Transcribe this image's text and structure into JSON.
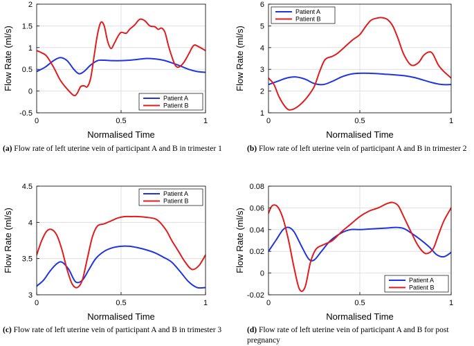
{
  "chart_data": [
    {
      "type": "line",
      "caption_tag": "(a)",
      "caption_text": "Flow rate of left uterine vein of participant A and B in trimester 1",
      "xlabel": "Normalised Time",
      "ylabel": "Flow Rate (ml/s)",
      "xlim": [
        0,
        1
      ],
      "ylim": [
        -0.5,
        2
      ],
      "xticks": [
        0,
        0.5,
        1
      ],
      "xtick_labels": [
        "0",
        "0.5",
        "1"
      ],
      "yticks": [
        -0.5,
        0,
        0.5,
        1,
        1.5,
        2
      ],
      "ytick_labels": [
        "-0.5",
        "0",
        "0.5",
        "1",
        "1.5",
        "2"
      ],
      "grid": true,
      "legend_position": "bottom-right",
      "series": [
        {
          "name": "Patient A",
          "color": "#1f33e6",
          "x": [
            0,
            0.05,
            0.1,
            0.14,
            0.18,
            0.22,
            0.25,
            0.28,
            0.32,
            0.36,
            0.4,
            0.45,
            0.5,
            0.55,
            0.6,
            0.65,
            0.7,
            0.75,
            0.8,
            0.85,
            0.9,
            0.95,
            1
          ],
          "y": [
            0.45,
            0.55,
            0.7,
            0.77,
            0.7,
            0.5,
            0.4,
            0.45,
            0.6,
            0.7,
            0.71,
            0.7,
            0.7,
            0.71,
            0.73,
            0.75,
            0.74,
            0.71,
            0.65,
            0.58,
            0.5,
            0.45,
            0.43
          ]
        },
        {
          "name": "Patient B",
          "color": "#e31a1c",
          "x": [
            0,
            0.03,
            0.06,
            0.1,
            0.14,
            0.18,
            0.22,
            0.24,
            0.26,
            0.28,
            0.3,
            0.32,
            0.34,
            0.36,
            0.38,
            0.4,
            0.42,
            0.44,
            0.46,
            0.48,
            0.5,
            0.53,
            0.55,
            0.58,
            0.61,
            0.64,
            0.67,
            0.7,
            0.72,
            0.74,
            0.76,
            0.78,
            0.8,
            0.82,
            0.84,
            0.87,
            0.9,
            0.93,
            0.96,
            1
          ],
          "y": [
            0.93,
            0.88,
            0.8,
            0.55,
            0.25,
            0.05,
            -0.1,
            -0.05,
            0.1,
            0.12,
            0.1,
            0.3,
            0.8,
            1.3,
            1.58,
            1.5,
            1.15,
            0.98,
            1.1,
            1.25,
            1.35,
            1.33,
            1.42,
            1.52,
            1.65,
            1.62,
            1.5,
            1.48,
            1.42,
            1.45,
            1.35,
            1.05,
            0.8,
            0.6,
            0.55,
            0.65,
            0.85,
            1.05,
            1.02,
            0.93
          ]
        }
      ]
    },
    {
      "type": "line",
      "caption_tag": "(b)",
      "caption_text": "Flow rate of left uterine vein of participant A and B in trimester 2",
      "xlabel": "Normalised Time",
      "ylabel": "Flow Rate (ml/s)",
      "xlim": [
        0,
        1
      ],
      "ylim": [
        1,
        6
      ],
      "xticks": [
        0,
        0.5,
        1
      ],
      "xtick_labels": [
        "0",
        "0.5",
        "1"
      ],
      "yticks": [
        1,
        2,
        3,
        4,
        5,
        6
      ],
      "ytick_labels": [
        "1",
        "2",
        "3",
        "4",
        "5",
        "6"
      ],
      "grid": true,
      "legend_position": "top-left",
      "series": [
        {
          "name": "Patient A",
          "color": "#1f33e6",
          "x": [
            0,
            0.05,
            0.1,
            0.15,
            0.2,
            0.25,
            0.3,
            0.35,
            0.4,
            0.45,
            0.5,
            0.55,
            0.6,
            0.65,
            0.7,
            0.75,
            0.8,
            0.85,
            0.9,
            0.95,
            1
          ],
          "y": [
            2.3,
            2.45,
            2.6,
            2.65,
            2.55,
            2.35,
            2.3,
            2.45,
            2.65,
            2.78,
            2.82,
            2.82,
            2.8,
            2.77,
            2.74,
            2.7,
            2.62,
            2.5,
            2.38,
            2.3,
            2.3
          ]
        },
        {
          "name": "Patient B",
          "color": "#e31a1c",
          "x": [
            0,
            0.03,
            0.06,
            0.1,
            0.13,
            0.17,
            0.21,
            0.25,
            0.28,
            0.31,
            0.35,
            0.38,
            0.42,
            0.46,
            0.5,
            0.53,
            0.56,
            0.59,
            0.62,
            0.65,
            0.68,
            0.71,
            0.74,
            0.78,
            0.82,
            0.85,
            0.88,
            0.9,
            0.93,
            0.96,
            1
          ],
          "y": [
            2.6,
            2.3,
            1.7,
            1.2,
            1.15,
            1.35,
            1.7,
            2.2,
            2.9,
            3.45,
            3.6,
            3.75,
            4.05,
            4.35,
            4.6,
            4.95,
            5.25,
            5.35,
            5.38,
            5.3,
            5.0,
            4.4,
            3.7,
            3.2,
            3.3,
            3.65,
            3.8,
            3.7,
            3.2,
            2.9,
            2.6
          ]
        }
      ]
    },
    {
      "type": "line",
      "caption_tag": "(c)",
      "caption_text": "Flow rate of left uterine vein of participant A and B in trimester 3",
      "xlabel": "Normalised Time",
      "ylabel": "Flow Rate (ml/s)",
      "xlim": [
        0,
        1
      ],
      "ylim": [
        3,
        4.5
      ],
      "xticks": [
        0,
        0.5,
        1
      ],
      "xtick_labels": [
        "0",
        "0.5",
        "1"
      ],
      "yticks": [
        3,
        3.5,
        4,
        4.5
      ],
      "ytick_labels": [
        "3",
        "3.5",
        "4",
        "4.5"
      ],
      "grid": true,
      "legend_position": "top-right",
      "series": [
        {
          "name": "Patient A",
          "color": "#1f33e6",
          "x": [
            0,
            0.04,
            0.08,
            0.12,
            0.15,
            0.19,
            0.23,
            0.27,
            0.31,
            0.35,
            0.4,
            0.45,
            0.5,
            0.55,
            0.6,
            0.65,
            0.7,
            0.75,
            0.8,
            0.85,
            0.9,
            0.95,
            1
          ],
          "y": [
            3.12,
            3.2,
            3.33,
            3.43,
            3.45,
            3.35,
            3.18,
            3.2,
            3.35,
            3.5,
            3.6,
            3.65,
            3.67,
            3.67,
            3.65,
            3.62,
            3.58,
            3.52,
            3.45,
            3.32,
            3.18,
            3.1,
            3.1
          ]
        },
        {
          "name": "Patient B",
          "color": "#e31a1c",
          "x": [
            0,
            0.03,
            0.06,
            0.09,
            0.12,
            0.15,
            0.18,
            0.21,
            0.24,
            0.27,
            0.3,
            0.33,
            0.36,
            0.4,
            0.44,
            0.48,
            0.52,
            0.56,
            0.6,
            0.65,
            0.7,
            0.73,
            0.77,
            0.8,
            0.84,
            0.88,
            0.92,
            0.96,
            1
          ],
          "y": [
            3.55,
            3.75,
            3.88,
            3.9,
            3.82,
            3.62,
            3.35,
            3.15,
            3.1,
            3.2,
            3.5,
            3.8,
            3.95,
            3.98,
            4.02,
            4.06,
            4.08,
            4.08,
            4.08,
            4.07,
            4.05,
            4.0,
            3.88,
            3.75,
            3.6,
            3.45,
            3.35,
            3.4,
            3.55
          ]
        }
      ]
    },
    {
      "type": "line",
      "caption_tag": "(d)",
      "caption_text": "Flow rate of left uterine vein of participant A and B for post pregnancy",
      "xlabel": "Normalised Time",
      "ylabel": "Flow Rate (ml/s)",
      "xlim": [
        0,
        1
      ],
      "ylim": [
        -0.02,
        0.08
      ],
      "xticks": [
        0,
        0.5,
        1
      ],
      "xtick_labels": [
        "0",
        "0.5",
        "1"
      ],
      "yticks": [
        -0.02,
        0,
        0.02,
        0.04,
        0.06,
        0.08
      ],
      "ytick_labels": [
        "-0.02",
        "0",
        "0.02",
        "0.04",
        "0.06",
        "0.08"
      ],
      "grid": true,
      "legend_position": "bottom-right",
      "series": [
        {
          "name": "Patient A",
          "color": "#1f33e6",
          "x": [
            0,
            0.04,
            0.08,
            0.11,
            0.14,
            0.18,
            0.22,
            0.25,
            0.29,
            0.34,
            0.4,
            0.45,
            0.5,
            0.55,
            0.6,
            0.65,
            0.7,
            0.74,
            0.78,
            0.83,
            0.88,
            0.92,
            0.96,
            1
          ],
          "y": [
            0.02,
            0.03,
            0.04,
            0.042,
            0.038,
            0.025,
            0.013,
            0.012,
            0.02,
            0.03,
            0.037,
            0.04,
            0.04,
            0.0405,
            0.041,
            0.0415,
            0.042,
            0.041,
            0.037,
            0.031,
            0.024,
            0.017,
            0.015,
            0.019
          ]
        },
        {
          "name": "Patient B",
          "color": "#e31a1c",
          "x": [
            0,
            0.02,
            0.05,
            0.08,
            0.11,
            0.14,
            0.17,
            0.2,
            0.23,
            0.26,
            0.3,
            0.35,
            0.4,
            0.45,
            0.5,
            0.55,
            0.6,
            0.65,
            0.68,
            0.71,
            0.74,
            0.78,
            0.82,
            0.86,
            0.9,
            0.93,
            0.96,
            1
          ],
          "y": [
            0.055,
            0.062,
            0.061,
            0.05,
            0.03,
            0.005,
            -0.015,
            -0.013,
            0.01,
            0.022,
            0.026,
            0.03,
            0.038,
            0.045,
            0.052,
            0.057,
            0.06,
            0.064,
            0.065,
            0.062,
            0.052,
            0.038,
            0.025,
            0.018,
            0.022,
            0.035,
            0.048,
            0.06
          ]
        }
      ]
    }
  ]
}
